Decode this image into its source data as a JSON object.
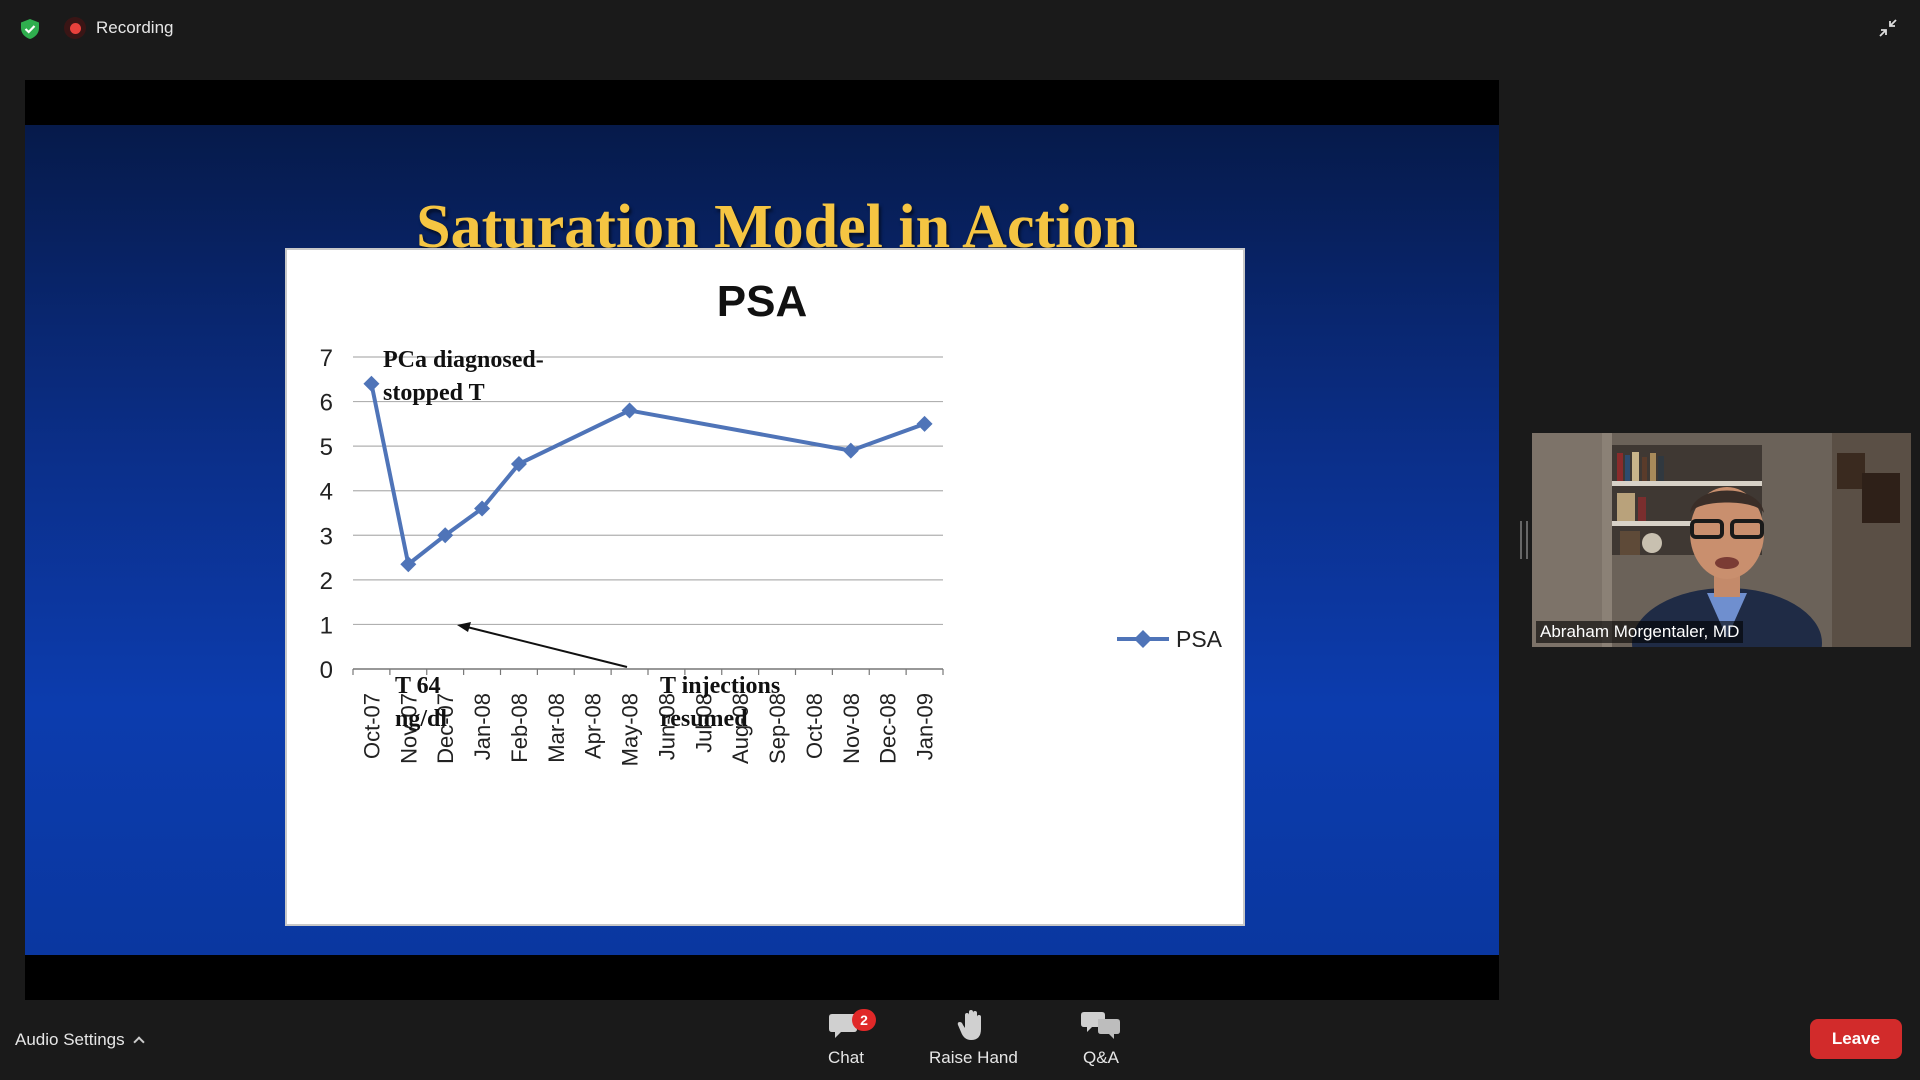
{
  "topbar": {
    "recording_label": "Recording"
  },
  "slide": {
    "title": "Saturation Model in Action",
    "annotations": {
      "diagnosed_line1": "PCa diagnosed-",
      "diagnosed_line2": "stopped T",
      "t64_line1": "T 64",
      "t64_line2": "ng/dl",
      "resumed_line1": "T injections",
      "resumed_line2": "resumed"
    }
  },
  "chart_data": {
    "type": "line",
    "title": "PSA",
    "categories": [
      "Oct-07",
      "Nov-07",
      "Dec-07",
      "Jan-08",
      "Feb-08",
      "Mar-08",
      "Apr-08",
      "May-08",
      "Jun-08",
      "Jul-08",
      "Aug-08",
      "Sep-08",
      "Oct-08",
      "Nov-08",
      "Dec-08",
      "Jan-09"
    ],
    "series": [
      {
        "name": "PSA",
        "points": [
          [
            0,
            6.4
          ],
          [
            1,
            2.35
          ],
          [
            2,
            3.0
          ],
          [
            3,
            3.6
          ],
          [
            4,
            4.6
          ],
          [
            7,
            5.8
          ],
          [
            13,
            4.9
          ],
          [
            15,
            5.5
          ]
        ],
        "color": "#4f74b8"
      }
    ],
    "yticks": [
      "0",
      "1",
      "2",
      "3",
      "4",
      "5",
      "6",
      "7"
    ],
    "ylim": [
      0,
      7
    ],
    "grid": true,
    "legend": "right"
  },
  "participant": {
    "name": "Abraham Morgentaler, MD"
  },
  "bottombar": {
    "audio_label": "Audio Settings",
    "chat_label": "Chat",
    "chat_badge": "2",
    "raise_hand_label": "Raise Hand",
    "qa_label": "Q&A",
    "leave_label": "Leave"
  },
  "colors": {
    "accent_red": "#d22b2b",
    "title_gold": "#f5c542",
    "series_blue": "#4f74b8",
    "shield_green": "#2fae4e"
  }
}
